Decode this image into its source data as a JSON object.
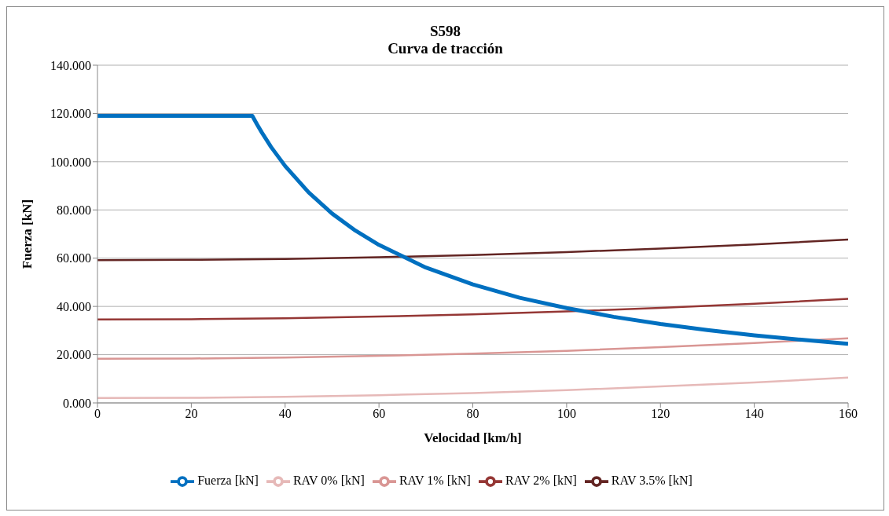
{
  "chart_data": {
    "type": "line",
    "title": "S598",
    "subtitle": "Curva de tracción",
    "xlabel": "Velocidad [km/h]",
    "ylabel": "Fuerza [kN]",
    "xlim": [
      0,
      160
    ],
    "xticks": [
      0,
      20,
      40,
      60,
      80,
      100,
      120,
      140,
      160
    ],
    "ylim": [
      0,
      140
    ],
    "yticks": [
      {
        "value": 0,
        "label": "0.000"
      },
      {
        "value": 20,
        "label": "20.000"
      },
      {
        "value": 40,
        "label": "40.000"
      },
      {
        "value": 60,
        "label": "60.000"
      },
      {
        "value": 80,
        "label": "80.000"
      },
      {
        "value": 100,
        "label": "100.000"
      },
      {
        "value": 120,
        "label": "120.000"
      },
      {
        "value": 140,
        "label": "140.000"
      }
    ],
    "grid": "y",
    "legend": "bottom",
    "marker": "none",
    "line_style": "solid",
    "series": [
      {
        "name": "RAV 0% [kN]",
        "color": "#e6b9b8",
        "x": [
          0,
          20,
          40,
          60,
          80,
          100,
          120,
          140,
          160
        ],
        "values": [
          2.0,
          2.1,
          2.5,
          3.2,
          4.1,
          5.3,
          6.8,
          8.5,
          10.5
        ]
      },
      {
        "name": "RAV 1% [kN]",
        "color": "#d99694",
        "x": [
          0,
          20,
          40,
          60,
          80,
          100,
          120,
          140,
          160
        ],
        "values": [
          18.3,
          18.4,
          18.8,
          19.5,
          20.4,
          21.6,
          23.1,
          24.8,
          26.8
        ]
      },
      {
        "name": "RAV 2% [kN]",
        "color": "#953735",
        "x": [
          0,
          20,
          40,
          60,
          80,
          100,
          120,
          140,
          160
        ],
        "values": [
          34.6,
          34.7,
          35.1,
          35.8,
          36.7,
          37.9,
          39.4,
          41.1,
          43.1
        ]
      },
      {
        "name": "RAV 3.5% [kN]",
        "color": "#632523",
        "x": [
          0,
          20,
          40,
          60,
          80,
          100,
          120,
          140,
          160
        ],
        "values": [
          59.2,
          59.3,
          59.7,
          60.4,
          61.3,
          62.5,
          64.0,
          65.7,
          67.7
        ]
      },
      {
        "name": "Fuerza [kN]",
        "color": "#0070c0",
        "x": [
          0,
          10,
          20,
          30,
          33,
          34,
          35,
          37,
          40,
          45,
          50,
          55,
          60,
          70,
          80,
          90,
          100,
          110,
          120,
          130,
          140,
          150,
          160
        ],
        "values": [
          119,
          119,
          119,
          119,
          119,
          115.5,
          112.2,
          106.1,
          98.2,
          87.3,
          78.5,
          71.4,
          65.5,
          56.1,
          49.1,
          43.6,
          39.3,
          35.7,
          32.7,
          30.2,
          28.0,
          26.2,
          24.5
        ]
      }
    ]
  }
}
